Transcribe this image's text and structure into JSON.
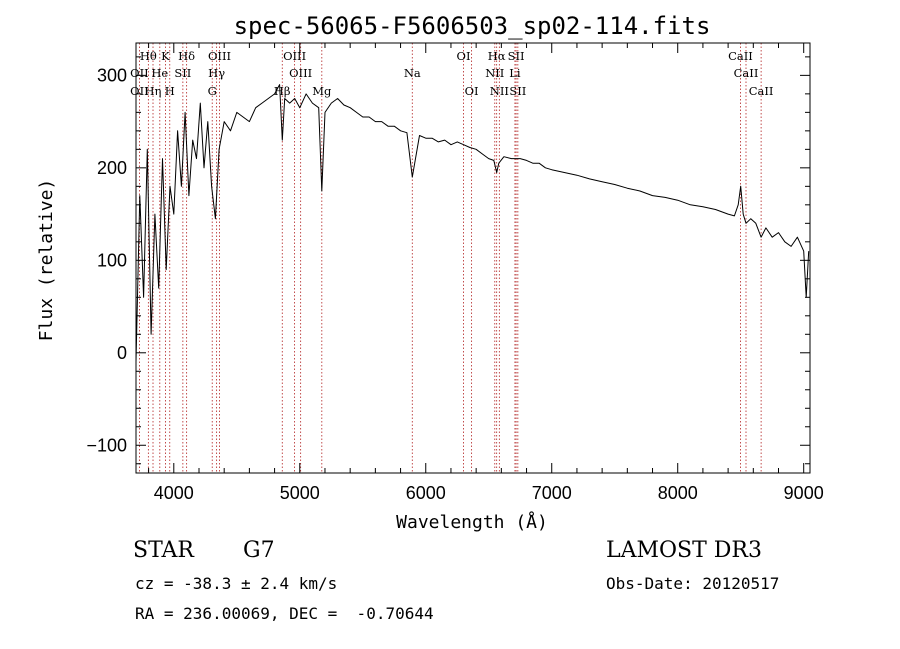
{
  "chart_data": {
    "type": "line",
    "title": "spec-56065-F5606503_sp02-114.fits",
    "xlabel": "Wavelength (Å)",
    "ylabel": "Flux (relative)",
    "xlim": [
      3700,
      9050
    ],
    "ylim": [
      -130,
      335
    ],
    "xticks": [
      4000,
      5000,
      6000,
      7000,
      8000,
      9000
    ],
    "yticks": [
      -100,
      0,
      100,
      200,
      300
    ],
    "series": [
      {
        "name": "flux",
        "x": [
          3700,
          3730,
          3760,
          3790,
          3820,
          3850,
          3880,
          3910,
          3940,
          3970,
          4000,
          4030,
          4060,
          4090,
          4120,
          4150,
          4180,
          4210,
          4240,
          4270,
          4300,
          4330,
          4360,
          4400,
          4450,
          4500,
          4550,
          4600,
          4650,
          4700,
          4750,
          4800,
          4840,
          4861,
          4880,
          4920,
          4960,
          5000,
          5050,
          5100,
          5150,
          5175,
          5200,
          5250,
          5300,
          5350,
          5400,
          5450,
          5500,
          5550,
          5600,
          5650,
          5700,
          5750,
          5800,
          5850,
          5893,
          5950,
          6000,
          6050,
          6100,
          6150,
          6200,
          6250,
          6300,
          6350,
          6400,
          6450,
          6500,
          6540,
          6563,
          6580,
          6620,
          6680,
          6750,
          6800,
          6850,
          6900,
          6950,
          7000,
          7100,
          7200,
          7300,
          7400,
          7500,
          7600,
          7700,
          7800,
          7900,
          8000,
          8100,
          8200,
          8300,
          8400,
          8450,
          8480,
          8500,
          8520,
          8542,
          8580,
          8620,
          8662,
          8700,
          8750,
          8800,
          8850,
          8900,
          8950,
          9000,
          9020,
          9040
        ],
        "y": [
          -10,
          170,
          60,
          220,
          20,
          150,
          70,
          210,
          90,
          180,
          150,
          240,
          180,
          260,
          170,
          230,
          210,
          270,
          200,
          250,
          180,
          145,
          220,
          250,
          240,
          260,
          255,
          250,
          265,
          270,
          275,
          280,
          290,
          230,
          275,
          270,
          275,
          265,
          280,
          270,
          265,
          175,
          260,
          270,
          275,
          268,
          265,
          260,
          255,
          255,
          250,
          250,
          245,
          245,
          240,
          238,
          190,
          235,
          232,
          232,
          228,
          230,
          225,
          228,
          225,
          222,
          220,
          215,
          210,
          208,
          195,
          205,
          212,
          210,
          210,
          208,
          205,
          205,
          200,
          198,
          195,
          192,
          188,
          185,
          182,
          178,
          175,
          170,
          168,
          165,
          160,
          158,
          155,
          150,
          148,
          160,
          180,
          150,
          140,
          145,
          140,
          125,
          135,
          125,
          130,
          120,
          115,
          125,
          110,
          60,
          110
        ]
      }
    ],
    "spectral_lines": [
      {
        "label": "Hθ",
        "wavelength": 3798,
        "row": 1
      },
      {
        "label": "K",
        "wavelength": 3934,
        "row": 1
      },
      {
        "label": "Hδ",
        "wavelength": 4102,
        "row": 1
      },
      {
        "label": "OIII",
        "wavelength": 4363,
        "row": 1
      },
      {
        "label": "OIII",
        "wavelength": 4959,
        "row": 1
      },
      {
        "label": "OI",
        "wavelength": 6300,
        "row": 1
      },
      {
        "label": "Hα",
        "wavelength": 6563,
        "row": 1
      },
      {
        "label": "SII",
        "wavelength": 6717,
        "row": 1
      },
      {
        "label": "CaII",
        "wavelength": 8498,
        "row": 1
      },
      {
        "label": "OII",
        "wavelength": 3727,
        "row": 2
      },
      {
        "label": "He",
        "wavelength": 3889,
        "row": 2
      },
      {
        "label": "SII",
        "wavelength": 4072,
        "row": 2
      },
      {
        "label": "Hγ",
        "wavelength": 4340,
        "row": 2
      },
      {
        "label": "OIII",
        "wavelength": 5007,
        "row": 2
      },
      {
        "label": "Na",
        "wavelength": 5893,
        "row": 2
      },
      {
        "label": "NII",
        "wavelength": 6548,
        "row": 2
      },
      {
        "label": "Li",
        "wavelength": 6708,
        "row": 2
      },
      {
        "label": "CaII",
        "wavelength": 8542,
        "row": 2
      },
      {
        "label": "OII",
        "wavelength": 3727,
        "row": 3
      },
      {
        "label": "Hη",
        "wavelength": 3835,
        "row": 3
      },
      {
        "label": "H",
        "wavelength": 3968,
        "row": 3
      },
      {
        "label": "G",
        "wavelength": 4305,
        "row": 3
      },
      {
        "label": "Hβ",
        "wavelength": 4861,
        "row": 3
      },
      {
        "label": "Mg",
        "wavelength": 5175,
        "row": 3
      },
      {
        "label": "OI",
        "wavelength": 6364,
        "row": 3
      },
      {
        "label": "NII",
        "wavelength": 6584,
        "row": 3
      },
      {
        "label": "SII",
        "wavelength": 6731,
        "row": 3
      },
      {
        "label": "CaII",
        "wavelength": 8662,
        "row": 3
      }
    ]
  },
  "info": {
    "class": "STAR",
    "subclass": "G7",
    "survey": "LAMOST DR3",
    "cz": "cz = -38.3 ± 2.4 km/s",
    "obs_date": "Obs-Date: 20120517",
    "coords": "RA = 236.00069, DEC =  -0.70644"
  },
  "colors": {
    "line": "#000000",
    "marker_lines": "#b22222",
    "background": "#ffffff"
  }
}
